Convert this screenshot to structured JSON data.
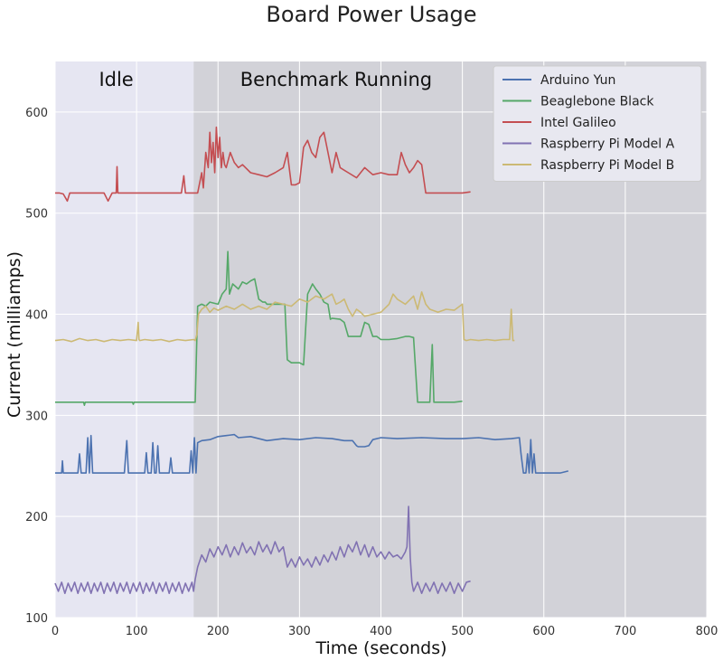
{
  "chart_data": {
    "type": "line",
    "title": "Board Power Usage",
    "xlabel": "Time (seconds)",
    "ylabel": "Current (milliamps)",
    "xlim": [
      0,
      800
    ],
    "ylim": [
      100,
      650
    ],
    "xticks": [
      "0",
      "100",
      "200",
      "300",
      "400",
      "500",
      "600",
      "700",
      "800"
    ],
    "yticks": [
      "100",
      "200",
      "300",
      "400",
      "500",
      "600"
    ],
    "grid": true,
    "legend_position": "top-right",
    "regions": [
      {
        "label": "Idle",
        "x_start": 0,
        "x_end": 170,
        "color": "#e6e6f2"
      },
      {
        "label": "Benchmark Running",
        "x_start": 170,
        "x_end": 800,
        "color": "#d2d2d8"
      }
    ],
    "series": [
      {
        "name": "Arduino Yun",
        "color": "#4c72b0",
        "x": [
          0,
          8,
          9,
          10,
          15,
          28,
          30,
          32,
          38,
          40,
          42,
          44,
          46,
          48,
          85,
          88,
          90,
          92,
          95,
          100,
          110,
          112,
          114,
          118,
          120,
          122,
          124,
          126,
          128,
          130,
          140,
          142,
          144,
          150,
          160,
          165,
          167,
          169,
          171,
          173,
          175,
          180,
          190,
          200,
          210,
          220,
          225,
          240,
          260,
          280,
          300,
          320,
          340,
          355,
          365,
          370,
          372,
          380,
          385,
          390,
          400,
          420,
          450,
          480,
          500,
          520,
          540,
          560,
          570,
          572,
          575,
          578,
          580,
          582,
          584,
          586,
          588,
          590,
          595,
          600,
          610,
          620,
          630
        ],
        "y": [
          243,
          243,
          255,
          243,
          243,
          243,
          262,
          243,
          243,
          278,
          243,
          280,
          243,
          243,
          243,
          275,
          243,
          243,
          243,
          243,
          243,
          263,
          243,
          243,
          273,
          243,
          243,
          270,
          243,
          243,
          243,
          258,
          243,
          243,
          243,
          243,
          265,
          243,
          278,
          243,
          273,
          275,
          276,
          279,
          280,
          281,
          278,
          279,
          275,
          277,
          276,
          278,
          277,
          275,
          275,
          270,
          269,
          269,
          270,
          276,
          278,
          277,
          278,
          277,
          277,
          278,
          276,
          277,
          278,
          262,
          243,
          243,
          262,
          243,
          276,
          243,
          262,
          243,
          243,
          243,
          243,
          243,
          245
        ]
      },
      {
        "name": "Beaglebone Black",
        "color": "#55a868",
        "x": [
          0,
          35,
          36,
          37,
          60,
          95,
          96,
          97,
          120,
          150,
          170,
          172,
          175,
          180,
          185,
          190,
          200,
          205,
          210,
          212,
          214,
          216,
          218,
          225,
          230,
          235,
          240,
          245,
          250,
          255,
          258,
          260,
          270,
          280,
          282,
          285,
          290,
          300,
          305,
          310,
          313,
          316,
          320,
          325,
          330,
          335,
          338,
          340,
          350,
          355,
          360,
          365,
          370,
          375,
          380,
          385,
          390,
          395,
          400,
          410,
          420,
          430,
          435,
          440,
          445,
          450,
          452,
          460,
          463,
          465,
          467,
          470,
          490,
          500
        ],
        "y": [
          313,
          313,
          310,
          313,
          313,
          313,
          311,
          313,
          313,
          313,
          313,
          313,
          408,
          410,
          408,
          412,
          410,
          420,
          425,
          462,
          420,
          425,
          430,
          425,
          432,
          430,
          433,
          435,
          415,
          412,
          412,
          410,
          410,
          410,
          410,
          355,
          352,
          352,
          350,
          420,
          425,
          430,
          425,
          420,
          412,
          410,
          395,
          396,
          395,
          392,
          378,
          378,
          378,
          378,
          392,
          390,
          378,
          378,
          375,
          375,
          376,
          378,
          378,
          377,
          313,
          313,
          313,
          313,
          370,
          313,
          313,
          313,
          313,
          314
        ]
      },
      {
        "name": "Intel Galileo",
        "color": "#c44e52",
        "x": [
          0,
          5,
          10,
          15,
          18,
          20,
          30,
          40,
          60,
          65,
          70,
          75,
          76,
          77,
          80,
          100,
          120,
          140,
          155,
          158,
          160,
          165,
          170,
          175,
          180,
          182,
          185,
          188,
          190,
          192,
          194,
          196,
          198,
          200,
          202,
          204,
          206,
          208,
          210,
          215,
          220,
          225,
          230,
          240,
          250,
          260,
          270,
          280,
          285,
          290,
          295,
          300,
          305,
          310,
          315,
          320,
          325,
          330,
          335,
          340,
          345,
          350,
          360,
          370,
          380,
          390,
          400,
          410,
          420,
          425,
          430,
          435,
          440,
          445,
          450,
          455,
          460,
          470,
          480,
          490,
          500,
          510
        ],
        "y": [
          520,
          520,
          519,
          512,
          520,
          520,
          520,
          520,
          520,
          512,
          520,
          520,
          546,
          520,
          520,
          520,
          520,
          520,
          520,
          537,
          520,
          520,
          520,
          520,
          540,
          525,
          560,
          545,
          580,
          550,
          570,
          540,
          585,
          555,
          575,
          545,
          560,
          548,
          545,
          560,
          550,
          545,
          548,
          540,
          538,
          536,
          540,
          545,
          560,
          528,
          528,
          530,
          565,
          572,
          560,
          555,
          575,
          580,
          560,
          540,
          560,
          545,
          540,
          535,
          545,
          538,
          540,
          538,
          538,
          560,
          548,
          540,
          545,
          552,
          548,
          520,
          520,
          520,
          520,
          520,
          520,
          521
        ]
      },
      {
        "name": "Raspberry Pi Model A",
        "color": "#8172b2",
        "x": [
          0,
          4,
          8,
          12,
          16,
          20,
          24,
          28,
          32,
          36,
          40,
          44,
          48,
          52,
          56,
          60,
          64,
          68,
          72,
          76,
          80,
          84,
          88,
          92,
          96,
          100,
          104,
          108,
          112,
          116,
          120,
          124,
          128,
          132,
          136,
          140,
          144,
          148,
          152,
          156,
          160,
          164,
          168,
          170,
          172,
          175,
          180,
          185,
          190,
          195,
          200,
          205,
          210,
          215,
          220,
          225,
          230,
          235,
          240,
          245,
          250,
          255,
          260,
          265,
          270,
          275,
          280,
          285,
          290,
          295,
          300,
          305,
          310,
          315,
          320,
          325,
          330,
          335,
          340,
          345,
          350,
          355,
          360,
          365,
          370,
          375,
          380,
          385,
          390,
          395,
          400,
          405,
          410,
          415,
          420,
          425,
          430,
          432,
          434,
          436,
          438,
          440,
          445,
          450,
          455,
          460,
          465,
          470,
          475,
          480,
          485,
          490,
          495,
          500,
          505,
          510
        ],
        "y": [
          134,
          126,
          135,
          124,
          134,
          126,
          135,
          124,
          134,
          126,
          135,
          124,
          134,
          126,
          135,
          124,
          134,
          126,
          135,
          124,
          134,
          126,
          135,
          124,
          134,
          126,
          135,
          124,
          134,
          126,
          135,
          124,
          134,
          126,
          135,
          124,
          134,
          126,
          135,
          124,
          134,
          126,
          135,
          126,
          138,
          150,
          162,
          155,
          168,
          160,
          170,
          162,
          172,
          160,
          170,
          162,
          174,
          164,
          170,
          162,
          175,
          165,
          172,
          163,
          175,
          165,
          170,
          150,
          158,
          150,
          160,
          152,
          158,
          150,
          160,
          152,
          162,
          155,
          165,
          157,
          170,
          160,
          172,
          165,
          175,
          162,
          172,
          160,
          170,
          160,
          165,
          158,
          165,
          160,
          162,
          158,
          165,
          170,
          210,
          160,
          135,
          126,
          135,
          124,
          134,
          126,
          135,
          124,
          134,
          126,
          135,
          124,
          134,
          126,
          135,
          136
        ]
      },
      {
        "name": "Raspberry Pi Model B",
        "color": "#ccb974",
        "x": [
          0,
          10,
          20,
          30,
          40,
          50,
          60,
          70,
          80,
          90,
          100,
          102,
          103,
          104,
          110,
          120,
          130,
          140,
          150,
          160,
          170,
          172,
          174,
          176,
          180,
          185,
          190,
          195,
          200,
          210,
          220,
          230,
          240,
          250,
          260,
          270,
          280,
          290,
          300,
          310,
          320,
          330,
          340,
          345,
          350,
          355,
          360,
          365,
          370,
          375,
          380,
          390,
          400,
          410,
          415,
          420,
          430,
          440,
          445,
          450,
          455,
          460,
          470,
          480,
          490,
          500,
          502,
          505,
          510,
          520,
          530,
          540,
          550,
          558,
          560,
          562,
          564
        ],
        "y": [
          374,
          375,
          373,
          376,
          374,
          375,
          373,
          375,
          374,
          375,
          374,
          392,
          375,
          374,
          375,
          374,
          375,
          373,
          375,
          374,
          375,
          374,
          380,
          400,
          405,
          408,
          402,
          406,
          404,
          408,
          405,
          410,
          405,
          408,
          405,
          412,
          410,
          408,
          415,
          412,
          418,
          415,
          420,
          410,
          412,
          415,
          405,
          398,
          405,
          402,
          398,
          400,
          402,
          410,
          420,
          415,
          410,
          418,
          405,
          422,
          410,
          405,
          402,
          405,
          404,
          410,
          375,
          374,
          375,
          374,
          375,
          374,
          375,
          375,
          405,
          374,
          374
        ]
      }
    ]
  }
}
